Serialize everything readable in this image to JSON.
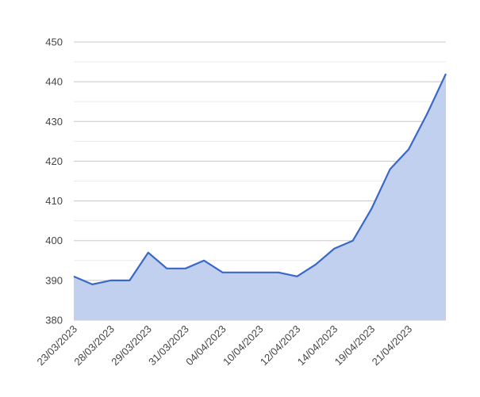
{
  "chart_data": {
    "type": "area",
    "title": "",
    "xlabel": "",
    "ylabel": "",
    "ylim": [
      380,
      450
    ],
    "yticks": [
      380,
      390,
      400,
      410,
      420,
      430,
      440,
      450
    ],
    "grid": true,
    "legend": "none",
    "x_tick_labels": [
      "23/03/2023",
      "28/03/2023",
      "29/03/2023",
      "31/03/2023",
      "04/04/2023",
      "10/04/2023",
      "12/04/2023",
      "14/04/2023",
      "19/04/2023",
      "21/04/2023"
    ],
    "series": [
      {
        "values": [
          391,
          389,
          390,
          390,
          397,
          393,
          393,
          395,
          392,
          392,
          392,
          392,
          391,
          394,
          398,
          400,
          408,
          418,
          423,
          432,
          442
        ],
        "color": "#3a68c8",
        "fill": "#c2d0ef"
      }
    ]
  }
}
